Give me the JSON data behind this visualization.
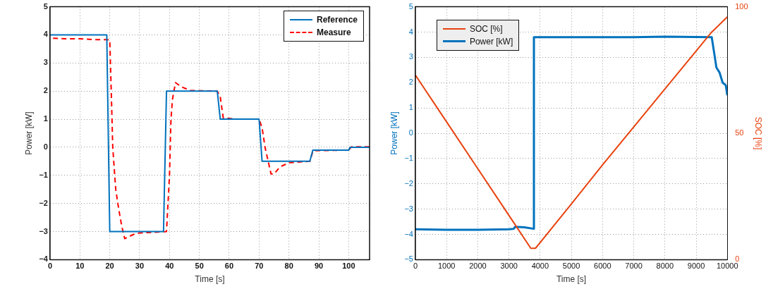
{
  "chart_data": [
    {
      "type": "line",
      "xlabel": "Time [s]",
      "ylabel": "Power [kW]",
      "xlim": [
        0,
        107
      ],
      "xticks": [
        0,
        10,
        20,
        30,
        40,
        50,
        60,
        70,
        80,
        90,
        100
      ],
      "ylim": [
        -4,
        5
      ],
      "yticks": [
        -4,
        -3,
        -2,
        -1,
        0,
        1,
        2,
        3,
        4,
        5
      ],
      "grid": true,
      "legend": "top right",
      "marker": "none",
      "series": [
        {
          "name": "Reference",
          "color": "#0072bd",
          "line_style": "solid",
          "x": [
            0,
            19,
            20,
            38,
            39,
            56,
            57,
            70,
            71,
            87,
            88,
            100,
            100.5,
            107
          ],
          "values": [
            4,
            4,
            -3,
            -3,
            2,
            2,
            1,
            1,
            -0.5,
            -0.5,
            -0.1,
            -0.1,
            0,
            0
          ]
        },
        {
          "name": "Measure",
          "color": "#ff0000",
          "line_style": "dashed",
          "x": [
            1,
            5,
            10,
            15,
            19,
            20,
            20.5,
            21,
            22,
            23,
            24,
            25,
            28,
            30,
            39,
            40,
            40.5,
            41,
            42,
            44,
            47,
            56,
            57,
            58,
            62,
            70,
            71,
            72,
            74,
            75,
            77,
            80,
            87,
            88,
            89,
            100,
            101,
            107
          ],
          "values": [
            3.88,
            3.86,
            3.86,
            3.83,
            3.83,
            3.82,
            2,
            0,
            -1.5,
            -2.2,
            -2.8,
            -3.25,
            -3.1,
            -3.05,
            -3,
            -1,
            1,
            1.7,
            2.3,
            2.15,
            2.02,
            2,
            1.8,
            1.05,
            1,
            1,
            0.7,
            0,
            -0.95,
            -0.95,
            -0.7,
            -0.55,
            -0.5,
            -0.15,
            -0.12,
            -0.1,
            0.02,
            0.02
          ]
        }
      ]
    },
    {
      "type": "line",
      "xlabel": "Time [s]",
      "ylabel": "Power [kW]",
      "y2label": "SOC [%]",
      "xlim": [
        0,
        10000
      ],
      "xticks": [
        0,
        1000,
        2000,
        3000,
        4000,
        5000,
        6000,
        7000,
        8000,
        9000,
        10000
      ],
      "ylim": [
        -5,
        5
      ],
      "yticks": [
        -5,
        -4,
        -3,
        -2,
        -1,
        0,
        1,
        2,
        3,
        4,
        5
      ],
      "y2lim": [
        0,
        100
      ],
      "y2ticks": [
        0,
        50,
        100
      ],
      "grid": true,
      "legend": "top left",
      "marker": "none",
      "series": [
        {
          "name": "SOC [%]",
          "color": "#e8420e",
          "axis": "y2",
          "x": [
            0,
            1000,
            2000,
            3000,
            3700,
            3850,
            5000,
            6000,
            7000,
            8000,
            9000,
            9500,
            10000
          ],
          "values": [
            73,
            54.5,
            36,
            17.5,
            4.5,
            4.5,
            22,
            37.5,
            52.5,
            67.5,
            82.5,
            90,
            96
          ]
        },
        {
          "name": "Power [kW]",
          "color": "#0072bd",
          "axis": "y",
          "x": [
            0,
            1000,
            2000,
            3000,
            3150,
            3200,
            3500,
            3800,
            3800,
            5000,
            7000,
            8000,
            9500,
            9600,
            9650,
            9750,
            9850,
            9950,
            10000
          ],
          "values": [
            -3.8,
            -3.82,
            -3.82,
            -3.8,
            -3.78,
            -3.7,
            -3.72,
            -3.78,
            3.8,
            3.8,
            3.8,
            3.82,
            3.8,
            3.0,
            2.6,
            2.4,
            2.0,
            1.9,
            1.5
          ]
        }
      ]
    }
  ]
}
